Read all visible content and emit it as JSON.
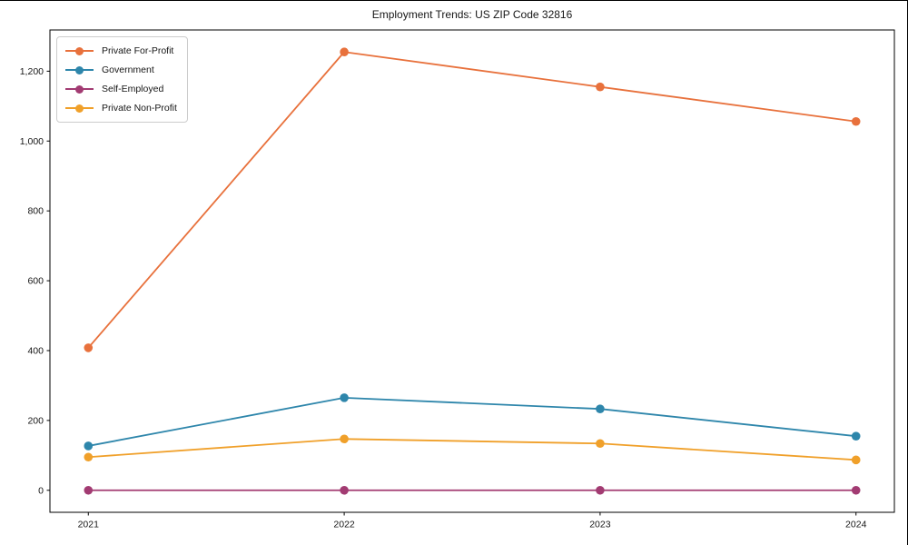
{
  "chart_data": {
    "type": "line",
    "title": "Employment Trends: US ZIP Code 32816",
    "x": [
      2021,
      2022,
      2023,
      2024
    ],
    "x_labels": [
      "2021",
      "2022",
      "2023",
      "2024"
    ],
    "series": [
      {
        "name": "Private For-Profit",
        "color": "#E8713C",
        "values": [
          408,
          1255,
          1155,
          1056
        ]
      },
      {
        "name": "Government",
        "color": "#2E86AB",
        "values": [
          127,
          265,
          233,
          155
        ]
      },
      {
        "name": "Self-Employed",
        "color": "#A23B72",
        "values": [
          0,
          0,
          0,
          0
        ]
      },
      {
        "name": "Private Non-Profit",
        "color": "#F0A02A",
        "values": [
          95,
          147,
          134,
          87
        ]
      }
    ],
    "yticks": [
      0,
      200,
      400,
      600,
      800,
      1000,
      1200
    ],
    "ytick_labels": [
      "0",
      "200",
      "400",
      "600",
      "800",
      "1,000",
      "1,200"
    ],
    "xlim": [
      2020.85,
      2024.15
    ],
    "ylim": [
      -63,
      1318
    ],
    "grid": false,
    "legend_position": "upper-left",
    "background_color": "#ffffff",
    "axis_color": "#000000"
  }
}
